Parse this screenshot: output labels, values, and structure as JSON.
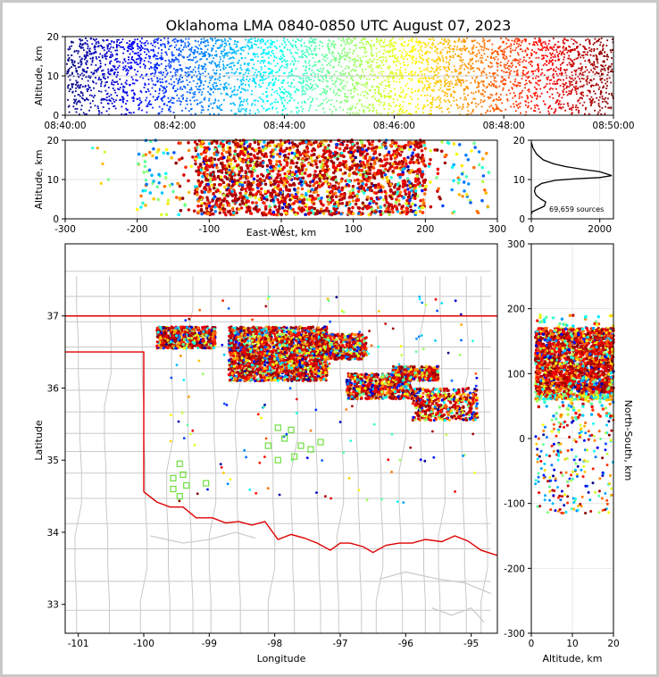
{
  "title": "Oklahoma LMA 0840-0850 UTC August 07, 2023",
  "chart_data": [
    {
      "panel": "altitude-time",
      "type": "scatter",
      "title": "Oklahoma LMA 0840-0850 UTC August 07, 2023",
      "ylabel": "Altitude, km",
      "xlabel": "",
      "xticks": [
        "08:40:00",
        "08:42:00",
        "08:44:00",
        "08:46:00",
        "08:48:00",
        "08:50:00"
      ],
      "yticks": [
        "0",
        "10",
        "20"
      ],
      "xlim": [
        "08:40:00",
        "08:50:00"
      ],
      "ylim": [
        0,
        20
      ],
      "colormap": "jet (color by time)",
      "grid": true
    },
    {
      "panel": "altitude-east-west",
      "type": "scatter",
      "xlabel": "East-West, km",
      "ylabel": "Altitude, km",
      "xticks": [
        "-300",
        "-200",
        "-100",
        "0",
        "100",
        "200",
        "300"
      ],
      "yticks": [
        "0",
        "10",
        "20"
      ],
      "xlim": [
        -300,
        300
      ],
      "ylim": [
        0,
        20
      ],
      "grid": true,
      "clusters": [
        {
          "x_range": [
            -200,
            290
          ],
          "z_range": [
            1,
            20
          ],
          "density": "high",
          "core_x": [
            -110,
            200
          ]
        },
        {
          "x_range": [
            -260,
            -230
          ],
          "z_range": [
            8,
            18
          ],
          "density": "sparse"
        }
      ]
    },
    {
      "panel": "altitude-histogram",
      "type": "line",
      "xticks": [
        "0",
        "2000"
      ],
      "yticks": [
        "0",
        "10",
        "20"
      ],
      "xlim": [
        0,
        2400
      ],
      "ylim": [
        0,
        20
      ],
      "annotation": "69,659 sources",
      "profile": [
        [
          0,
          19.5
        ],
        [
          50,
          18
        ],
        [
          150,
          16.5
        ],
        [
          350,
          15
        ],
        [
          650,
          14
        ],
        [
          1000,
          13.3
        ],
        [
          1500,
          12.6
        ],
        [
          2000,
          12
        ],
        [
          2350,
          11
        ],
        [
          2000,
          10.5
        ],
        [
          1300,
          10.2
        ],
        [
          700,
          9.8
        ],
        [
          300,
          9
        ],
        [
          120,
          8
        ],
        [
          90,
          7
        ],
        [
          140,
          6
        ],
        [
          280,
          5
        ],
        [
          420,
          4.3
        ],
        [
          380,
          3.2
        ],
        [
          150,
          2.3
        ],
        [
          30,
          1.8
        ],
        [
          0,
          1.2
        ]
      ]
    },
    {
      "panel": "plan-view",
      "type": "scatter",
      "xlabel": "Longitude",
      "ylabel": "Latitude",
      "xticks": [
        "-101",
        "-100",
        "-99",
        "-98",
        "-97",
        "-96",
        "-95"
      ],
      "yticks": [
        "33",
        "34",
        "35",
        "36",
        "37"
      ],
      "xlim": [
        -101.2,
        -94.6
      ],
      "ylim": [
        32.6,
        38
      ],
      "clusters": [
        {
          "lon": [
            -99.8,
            -98.9
          ],
          "lat": [
            36.55,
            36.85
          ]
        },
        {
          "lon": [
            -98.7,
            -97.2
          ],
          "lat": [
            36.1,
            36.85
          ]
        },
        {
          "lon": [
            -97.3,
            -96.6
          ],
          "lat": [
            36.4,
            36.75
          ]
        },
        {
          "lon": [
            -96.9,
            -95.9
          ],
          "lat": [
            35.85,
            36.2
          ]
        },
        {
          "lon": [
            -96.2,
            -95.5
          ],
          "lat": [
            36.1,
            36.3
          ]
        },
        {
          "lon": [
            -95.9,
            -94.9
          ],
          "lat": [
            35.55,
            36.0
          ]
        }
      ],
      "stations": [
        [
          -97.95,
          35.45
        ],
        [
          -97.75,
          35.42
        ],
        [
          -97.85,
          35.3
        ],
        [
          -98.1,
          35.2
        ],
        [
          -97.6,
          35.2
        ],
        [
          -97.45,
          35.15
        ],
        [
          -97.3,
          35.25
        ],
        [
          -97.95,
          35.0
        ],
        [
          -97.7,
          35.05
        ],
        [
          -99.45,
          34.95
        ],
        [
          -99.4,
          34.8
        ],
        [
          -99.55,
          34.75
        ],
        [
          -99.35,
          34.65
        ],
        [
          -99.05,
          34.68
        ],
        [
          -99.55,
          34.6
        ],
        [
          -99.45,
          34.5
        ]
      ]
    },
    {
      "panel": "altitude-north-south",
      "type": "scatter",
      "xlabel": "Altitude, km",
      "ylabel": "North-South, km",
      "xticks": [
        "0",
        "10",
        "20"
      ],
      "yticks": [
        "-300",
        "-200",
        "-100",
        "0",
        "100",
        "200",
        "300"
      ],
      "xlim": [
        0,
        20
      ],
      "ylim": [
        -300,
        300
      ],
      "grid": true,
      "clusters": [
        {
          "z_range": [
            1,
            20
          ],
          "y_range": [
            30,
            190
          ],
          "density": "high",
          "core_y": [
            60,
            170
          ]
        },
        {
          "z_range": [
            1,
            20
          ],
          "y_range": [
            -120,
            30
          ],
          "density": "sparse"
        }
      ]
    }
  ]
}
